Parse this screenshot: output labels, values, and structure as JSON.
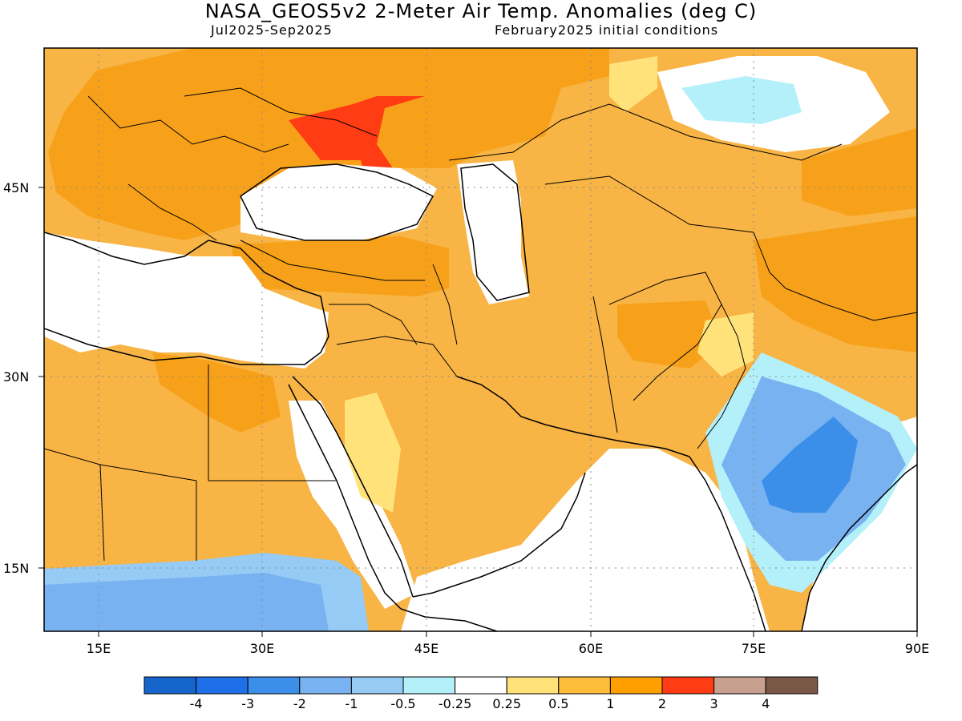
{
  "title": "NASA_GEOS5v2 2-Meter Air Temp. Anomalies (deg C)",
  "subtitle_left": "Jul2025-Sep2025",
  "subtitle_right": "February2025 initial conditions",
  "lat_labels": [
    "45N",
    "30N",
    "15N"
  ],
  "lon_labels": [
    "15E",
    "30E",
    "45E",
    "60E",
    "75E",
    "90E"
  ],
  "colorbar": {
    "colors": [
      "#1565cc",
      "#1e6fe8",
      "#3b8fe8",
      "#78b2f0",
      "#96cbf5",
      "#b4f0fa",
      "#ffffff",
      "#ffe37a",
      "#ffbd3c",
      "#ffa000",
      "#ff3c14",
      "#c8a090",
      "#7a5848"
    ],
    "labels": [
      "-4",
      "-3",
      "-2",
      "-1",
      "-0.5",
      "-0.25",
      "0.25",
      "0.5",
      "1",
      "2",
      "3",
      "4"
    ]
  },
  "map_colors": {
    "light_orange": "#f8b444",
    "orange": "#f7a11a",
    "red": "#ff3c14",
    "blue_light": "#96cbf5",
    "blue_mid": "#78b2f0",
    "blue_dark": "#3b8fe8",
    "cyan": "#b4f0fa",
    "yellow": "#ffe37a"
  }
}
